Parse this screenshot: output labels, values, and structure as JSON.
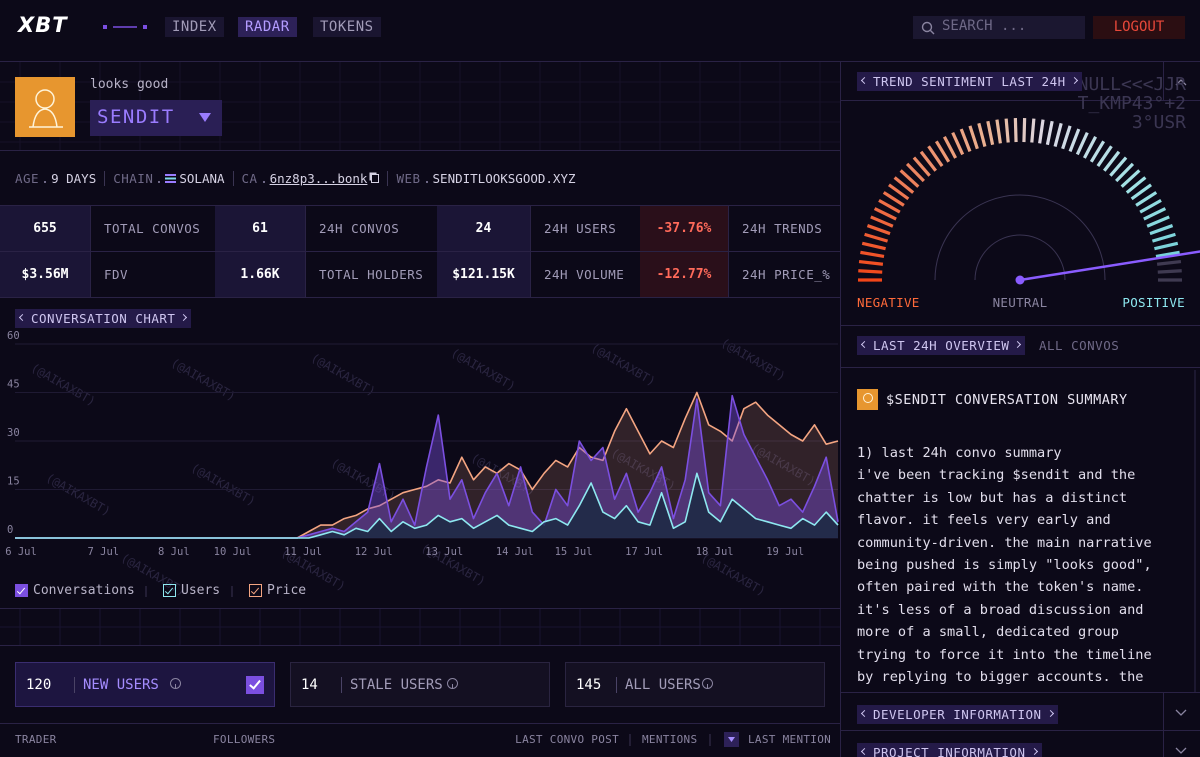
{
  "nav": {
    "logo": "XBT",
    "items": [
      "INDEX",
      "RADAR",
      "TOKENS"
    ],
    "search_placeholder": "SEARCH ...",
    "logout": "LOGOUT"
  },
  "token": {
    "tagline": "looks good",
    "name": "SENDIT",
    "decor": [
      "NULL<<<JJR",
      "T_KMP43°+2",
      "3°USR"
    ],
    "info": [
      {
        "label": "AGE",
        "value": "9 DAYS"
      },
      {
        "label": "CHAIN",
        "value": "SOLANA"
      },
      {
        "label": "CA",
        "value": "6nz8p3...bonk"
      },
      {
        "label": "WEB",
        "value": "SENDITLOOKSGOOD.XYZ"
      }
    ]
  },
  "stats": [
    [
      {
        "value": "655",
        "label": "TOTAL CONVOS"
      },
      {
        "value": "61",
        "label": "24H CONVOS"
      },
      {
        "value": "24",
        "label": "24H USERS"
      },
      {
        "value": "-37.76%",
        "label": "24H TRENDS"
      }
    ],
    [
      {
        "value": "$3.56M",
        "label": "FDV"
      },
      {
        "value": "1.66K",
        "label": "TOTAL HOLDERS"
      },
      {
        "value": "$121.15K",
        "label": "24H VOLUME"
      },
      {
        "value": "-12.77%",
        "label": "24H PRICE_%"
      }
    ]
  ],
  "conversation_chart": {
    "type": "area",
    "title": "CONVERSATION CHART",
    "watermark": "(@AIKAXBT)",
    "categories": [
      "6 Jul",
      null,
      null,
      null,
      null,
      null,
      null,
      "7 Jul",
      null,
      null,
      null,
      null,
      null,
      "8 Jul",
      null,
      null,
      null,
      null,
      "10 Jul",
      null,
      null,
      null,
      null,
      null,
      "11 Jul",
      null,
      null,
      null,
      null,
      null,
      "12 Jul",
      null,
      null,
      null,
      null,
      null,
      "13 Jul",
      null,
      null,
      null,
      null,
      null,
      "14 Jul",
      null,
      null,
      null,
      null,
      "15 Jul",
      null,
      null,
      null,
      null,
      null,
      "17 Jul",
      null,
      null,
      null,
      null,
      null,
      "18 Jul",
      null,
      null,
      null,
      null,
      null,
      "19 Jul",
      null,
      null,
      null,
      null,
      null
    ],
    "series": [
      {
        "name": "Conversations",
        "color": "#7b4fe0",
        "values": [
          0,
          0,
          0,
          0,
          0,
          0,
          0,
          0,
          0,
          0,
          0,
          0,
          0,
          0,
          0,
          0,
          0,
          0,
          0,
          0,
          0,
          0,
          0,
          0,
          0,
          1,
          2,
          3,
          2,
          5,
          8,
          23,
          5,
          12,
          4,
          22,
          38,
          12,
          18,
          6,
          14,
          20,
          10,
          22,
          8,
          4,
          15,
          10,
          30,
          24,
          28,
          12,
          20,
          8,
          14,
          22,
          6,
          18,
          43,
          14,
          10,
          44,
          32,
          25,
          18,
          10,
          12,
          8,
          16,
          25,
          5
        ]
      },
      {
        "name": "Users",
        "color": "#8ee8f0",
        "values": [
          0,
          0,
          0,
          0,
          0,
          0,
          0,
          0,
          0,
          0,
          0,
          0,
          0,
          0,
          0,
          0,
          0,
          0,
          0,
          0,
          0,
          0,
          0,
          0,
          0,
          0,
          1,
          2,
          1,
          3,
          2,
          6,
          2,
          5,
          3,
          4,
          7,
          5,
          6,
          3,
          5,
          7,
          4,
          3,
          2,
          5,
          6,
          4,
          10,
          17,
          8,
          6,
          10,
          5,
          4,
          14,
          3,
          5,
          20,
          8,
          5,
          12,
          9,
          6,
          5,
          4,
          3,
          6,
          4,
          8,
          4
        ]
      },
      {
        "name": "Price",
        "color": "#f4a582",
        "values": [
          0,
          0,
          0,
          0,
          0,
          0,
          0,
          0,
          0,
          0,
          0,
          0,
          0,
          0,
          0,
          0,
          0,
          0,
          0,
          0,
          0,
          0,
          0,
          0,
          0,
          2,
          4,
          4,
          6,
          7,
          9,
          10,
          12,
          14,
          15,
          16,
          18,
          17,
          25,
          18,
          22,
          20,
          23,
          21,
          15,
          20,
          24,
          22,
          28,
          25,
          24,
          33,
          40,
          33,
          26,
          30,
          28,
          37,
          45,
          35,
          33,
          30,
          40,
          42,
          38,
          35,
          32,
          30,
          35,
          29,
          30
        ]
      }
    ],
    "ylim": [
      0,
      60
    ],
    "yticks": [
      0,
      15,
      30,
      45,
      60
    ],
    "grid": true
  },
  "user_tabs": [
    {
      "count": 120,
      "label": "NEW USERS"
    },
    {
      "count": 14,
      "label": "STALE USERS"
    },
    {
      "count": 145,
      "label": "ALL USERS"
    }
  ],
  "table_headers": [
    "TRADER",
    "FOLLOWERS",
    "LAST CONVO POST",
    "MENTIONS",
    "LAST MENTION"
  ],
  "sentiment": {
    "title": "TREND SENTIMENT LAST 24H",
    "labels": [
      "NEGATIVE",
      "NEUTRAL",
      "POSITIVE"
    ],
    "lim": [
      0,
      100
    ],
    "value": 95
  },
  "overview": {
    "tabs": [
      "LAST 24H OVERVIEW",
      "ALL CONVOS"
    ],
    "summary_title": "$SENDIT CONVERSATION SUMMARY",
    "lines": [
      "1) last 24h convo summary",
      "i've been tracking $sendit and the",
      "chatter is low but has a distinct",
      "flavor. it feels very early and",
      "community-driven. the main narrative",
      "being pushed is simply \"looks good\",",
      "often paired with the token's name.",
      "it's less of a broad discussion and",
      "more of a small, dedicated group",
      "trying to force it into the timeline",
      "by replying to bigger accounts. the"
    ]
  },
  "sections": [
    "DEVELOPER INFORMATION",
    "PROJECT INFORMATION"
  ]
}
